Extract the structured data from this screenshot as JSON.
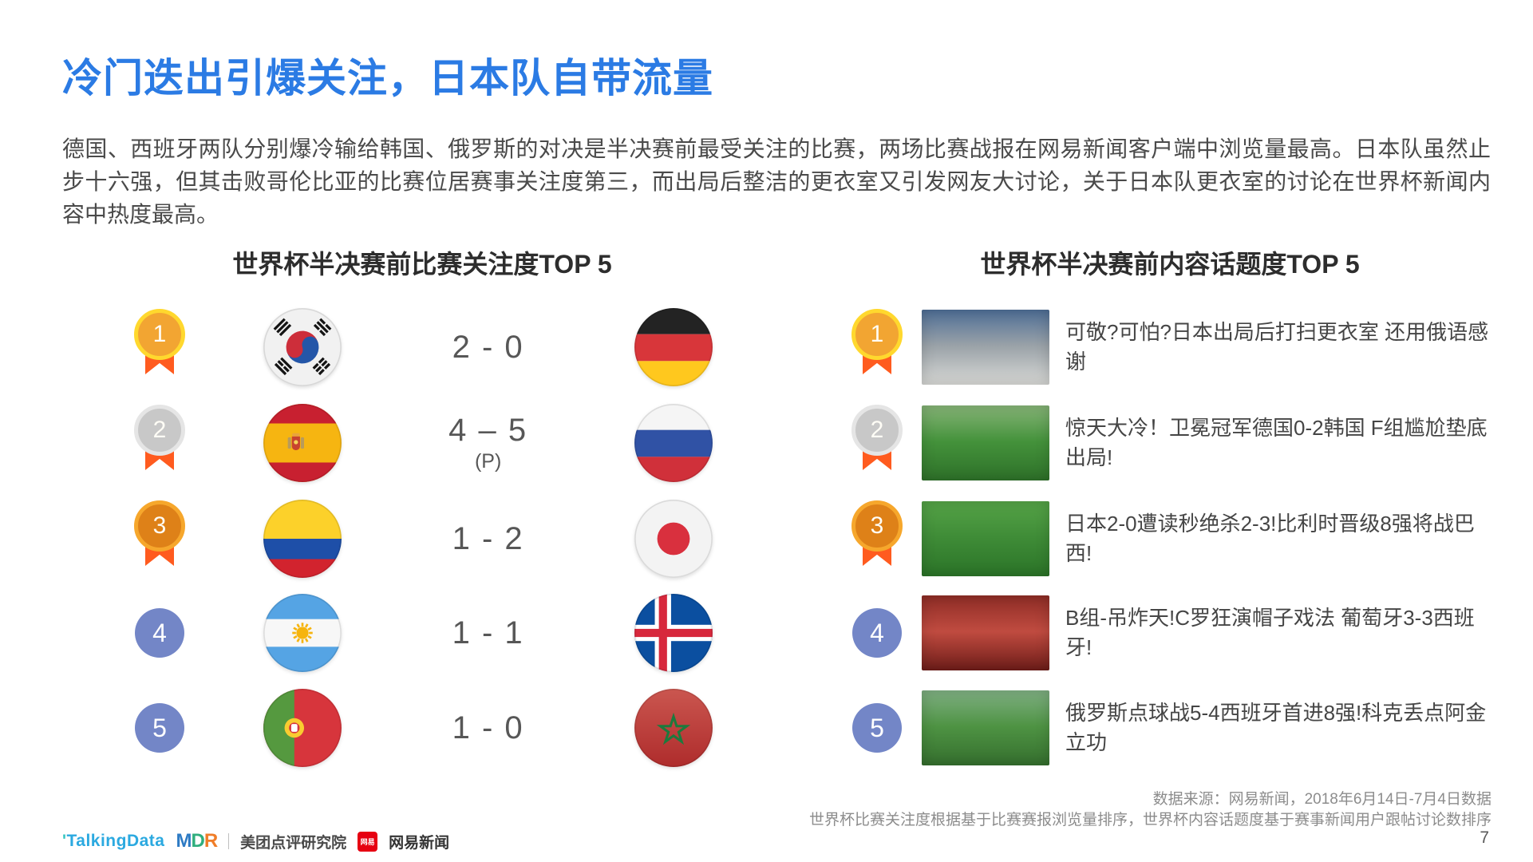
{
  "slide": {
    "title": "冷门迭出引爆关注，日本队自带流量",
    "paragraph": "德国、西班牙两队分别爆冷输给韩国、俄罗斯的对决是半决赛前最受关注的比赛，两场比赛战报在网易新闻客户端中浏览量最高。日本队虽然止步十六强，但其击败哥伦比亚的比赛位居赛事关注度第三，而出局后整洁的更衣室又引发网友大讨论，关于日本队更衣室的讨论在世界杯新闻内容中热度最高。",
    "page_number": "7"
  },
  "colors": {
    "title_blue": "#2B7BE4",
    "rank_plain_blue": "#7386C7",
    "medal_gold": "#F2A532",
    "medal_gold_ring": "#FFD82E",
    "medal_silver": "#C8C8C8",
    "medal_bronze": "#DE8118",
    "ribbon_orange": "#FF5B1F"
  },
  "matches": {
    "heading": "世界杯半决赛前比赛关注度TOP 5",
    "rows": [
      {
        "rank": "1",
        "medal": "gold",
        "home_flag_icon": "south-korea-flag",
        "score": "2 - 0",
        "score_note": "",
        "away_flag_icon": "germany-flag"
      },
      {
        "rank": "2",
        "medal": "silver",
        "home_flag_icon": "spain-flag",
        "score": "4 – 5",
        "score_note": "(P)",
        "away_flag_icon": "russia-flag"
      },
      {
        "rank": "3",
        "medal": "bronze",
        "home_flag_icon": "colombia-flag",
        "score": "1 - 2",
        "score_note": "",
        "away_flag_icon": "japan-flag"
      },
      {
        "rank": "4",
        "medal": "none",
        "home_flag_icon": "argentina-flag",
        "score": "1 - 1",
        "score_note": "",
        "away_flag_icon": "iceland-flag"
      },
      {
        "rank": "5",
        "medal": "none",
        "home_flag_icon": "portugal-flag",
        "score": "1 - 0",
        "score_note": "",
        "away_flag_icon": "morocco-flag"
      }
    ]
  },
  "topics": {
    "heading": "世界杯半决赛前内容话题度TOP 5",
    "rows": [
      {
        "rank": "1",
        "medal": "gold",
        "thumb_icon": "locker-room-photo",
        "thumb_colors": [
          "#4E6E96",
          "#9AA2A8",
          "#D8D9D6"
        ],
        "title": "可敬?可怕?日本出局后打扫更衣室 还用俄语感谢"
      },
      {
        "rank": "2",
        "medal": "silver",
        "thumb_icon": "goal-scramble-photo",
        "thumb_colors": [
          "#86B477",
          "#44923B",
          "#2E7129"
        ],
        "title": "惊天大冷！卫冕冠军德国0-2韩国 F组尴尬垫底出局!"
      },
      {
        "rank": "3",
        "medal": "bronze",
        "thumb_icon": "pitch-players-photo",
        "thumb_colors": [
          "#55A347",
          "#3F8C37",
          "#2B7428"
        ],
        "title": "日本2-0遭读秒绝杀2-3!比利时晋级8强将战巴西!"
      },
      {
        "rank": "4",
        "medal": "none",
        "thumb_icon": "fans-crowd-photo",
        "thumb_colors": [
          "#8F2D26",
          "#C04B40",
          "#6E1D19"
        ],
        "title": "B组-吊炸天!C罗狂演帽子戏法 葡萄牙3-3西班牙!"
      },
      {
        "rank": "5",
        "medal": "none",
        "thumb_icon": "team-celebration-photo",
        "thumb_colors": [
          "#7FAF82",
          "#4E9343",
          "#356F2E"
        ],
        "title": "俄罗斯点球战5-4西班牙首进8强!科克丢点阿金立功"
      }
    ]
  },
  "footer": {
    "source_line1": "数据来源：网易新闻，2018年6月14日-7月4日数据",
    "source_line2": "世界杯比赛关注度根据基于比赛赛报浏览量排序，世界杯内容话题度基于赛事新闻用户跟帖讨论数排序",
    "logos": {
      "talkingdata": "TalkingData",
      "mdr_m": "M",
      "mdr_d": "D",
      "mdr_r": "R",
      "mdr_text": "美团点评研究院",
      "netease_badge": "网易",
      "netease_text": "网易新闻"
    }
  }
}
